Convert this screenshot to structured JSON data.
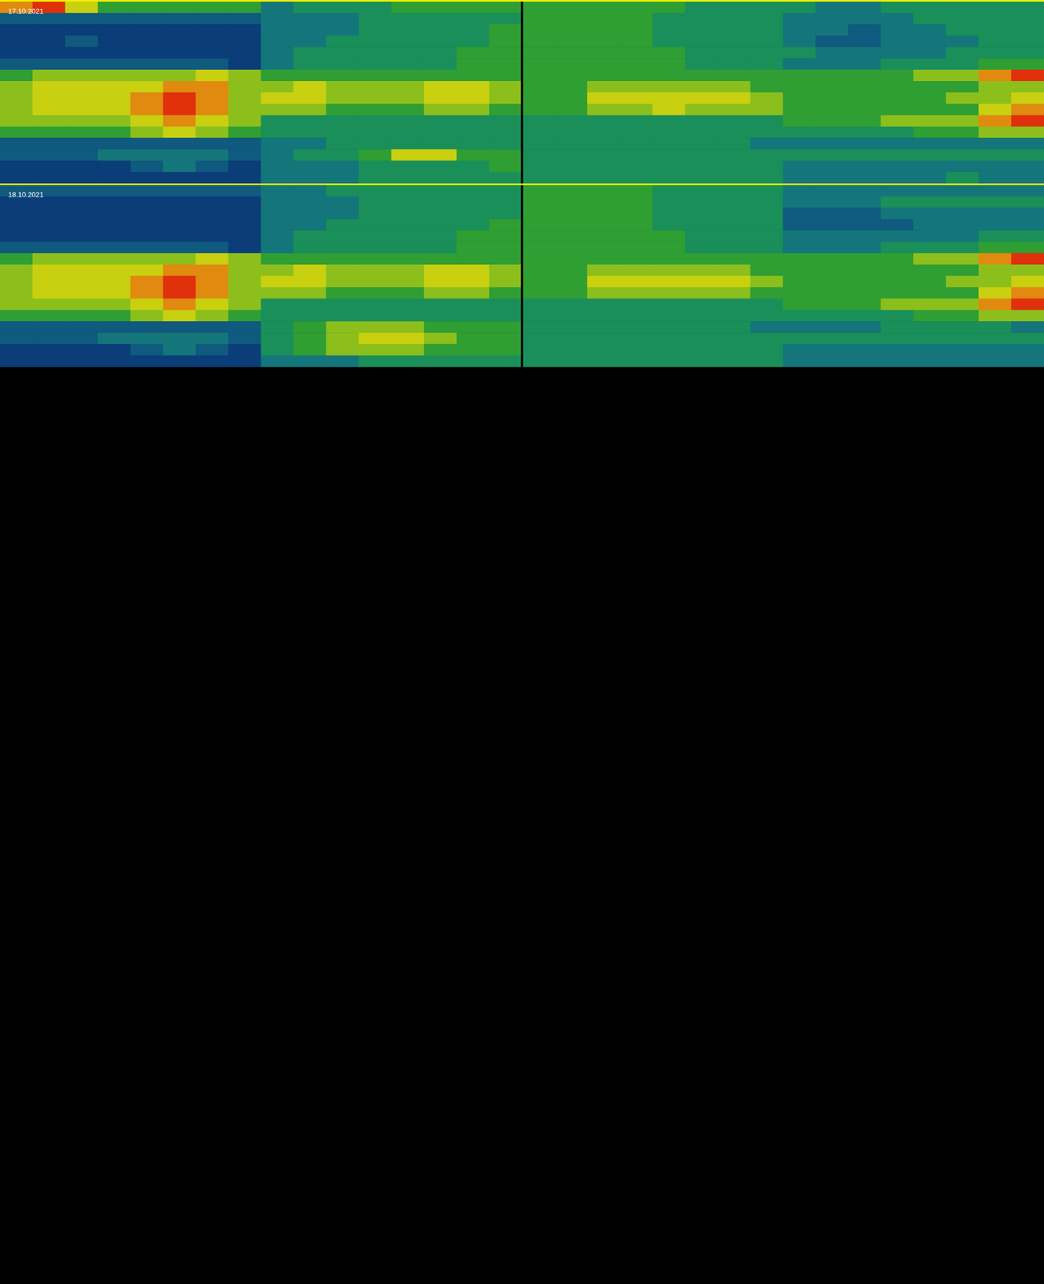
{
  "chart_data": [
    {
      "type": "heatmap",
      "title": "17.10.2021",
      "tick_labels": false,
      "color_range": [
        0,
        9
      ],
      "values": [
        [
          8,
          9,
          7,
          5,
          5,
          5,
          5,
          5,
          3,
          4,
          4,
          4,
          5,
          5,
          5,
          5,
          5,
          5,
          5,
          5,
          5,
          4,
          4,
          4,
          4,
          3,
          3,
          4,
          4,
          4,
          4,
          4
        ],
        [
          2,
          2,
          2,
          2,
          2,
          2,
          2,
          2,
          3,
          3,
          3,
          4,
          4,
          4,
          4,
          4,
          5,
          5,
          5,
          5,
          4,
          4,
          4,
          4,
          3,
          3,
          3,
          3,
          4,
          4,
          4,
          4
        ],
        [
          1,
          1,
          1,
          1,
          1,
          1,
          1,
          1,
          3,
          3,
          3,
          4,
          4,
          4,
          4,
          5,
          5,
          5,
          5,
          5,
          4,
          4,
          4,
          4,
          3,
          3,
          2,
          3,
          3,
          4,
          4,
          4
        ],
        [
          1,
          1,
          2,
          1,
          1,
          1,
          1,
          1,
          3,
          3,
          4,
          4,
          4,
          4,
          4,
          5,
          5,
          5,
          5,
          5,
          4,
          4,
          4,
          4,
          3,
          2,
          2,
          3,
          3,
          3,
          4,
          4
        ],
        [
          1,
          1,
          1,
          1,
          1,
          1,
          1,
          1,
          3,
          4,
          4,
          4,
          4,
          4,
          5,
          5,
          5,
          5,
          5,
          5,
          5,
          4,
          4,
          4,
          4,
          3,
          3,
          3,
          3,
          4,
          4,
          4
        ],
        [
          2,
          2,
          2,
          2,
          2,
          2,
          2,
          1,
          3,
          4,
          4,
          4,
          4,
          4,
          5,
          5,
          5,
          5,
          5,
          5,
          5,
          4,
          4,
          4,
          3,
          3,
          3,
          4,
          4,
          4,
          5,
          5
        ],
        [
          5,
          6,
          6,
          6,
          6,
          6,
          7,
          6,
          5,
          5,
          5,
          5,
          5,
          5,
          5,
          5,
          5,
          5,
          5,
          5,
          5,
          5,
          5,
          5,
          5,
          5,
          5,
          5,
          6,
          6,
          8,
          9
        ],
        [
          6,
          7,
          7,
          7,
          7,
          8,
          8,
          6,
          6,
          7,
          6,
          6,
          6,
          7,
          7,
          6,
          5,
          5,
          6,
          6,
          6,
          6,
          6,
          5,
          5,
          5,
          5,
          5,
          5,
          5,
          6,
          6
        ],
        [
          6,
          7,
          7,
          7,
          8,
          9,
          8,
          6,
          7,
          7,
          6,
          6,
          6,
          7,
          7,
          6,
          5,
          5,
          7,
          7,
          7,
          7,
          7,
          6,
          5,
          5,
          5,
          5,
          5,
          6,
          6,
          7
        ],
        [
          6,
          7,
          7,
          7,
          8,
          9,
          8,
          6,
          6,
          6,
          5,
          5,
          5,
          6,
          6,
          5,
          5,
          5,
          6,
          6,
          7,
          6,
          6,
          6,
          5,
          5,
          5,
          5,
          5,
          5,
          7,
          8
        ],
        [
          6,
          6,
          6,
          6,
          7,
          8,
          7,
          6,
          4,
          4,
          4,
          4,
          4,
          4,
          4,
          4,
          4,
          4,
          4,
          4,
          4,
          4,
          4,
          4,
          5,
          5,
          5,
          6,
          6,
          6,
          8,
          9
        ],
        [
          5,
          5,
          5,
          5,
          6,
          7,
          6,
          5,
          4,
          4,
          4,
          4,
          4,
          4,
          4,
          4,
          4,
          4,
          4,
          4,
          4,
          4,
          4,
          4,
          4,
          4,
          4,
          4,
          5,
          5,
          6,
          6
        ],
        [
          2,
          2,
          2,
          2,
          2,
          2,
          2,
          2,
          3,
          3,
          4,
          4,
          4,
          4,
          4,
          4,
          4,
          4,
          4,
          4,
          4,
          4,
          4,
          3,
          3,
          3,
          3,
          3,
          3,
          3,
          3,
          3
        ],
        [
          2,
          2,
          2,
          3,
          3,
          3,
          3,
          2,
          3,
          4,
          4,
          5,
          7,
          7,
          5,
          5,
          4,
          4,
          4,
          4,
          4,
          4,
          4,
          4,
          4,
          4,
          4,
          4,
          4,
          4,
          4,
          4
        ],
        [
          1,
          1,
          1,
          1,
          2,
          3,
          2,
          1,
          3,
          3,
          3,
          4,
          4,
          4,
          4,
          5,
          4,
          4,
          4,
          4,
          4,
          4,
          4,
          4,
          3,
          3,
          3,
          3,
          3,
          3,
          3,
          3
        ],
        [
          1,
          1,
          1,
          1,
          1,
          1,
          1,
          1,
          3,
          3,
          3,
          4,
          4,
          4,
          4,
          4,
          4,
          4,
          4,
          4,
          4,
          4,
          4,
          4,
          3,
          3,
          3,
          3,
          3,
          4,
          3,
          3
        ]
      ]
    },
    {
      "type": "heatmap",
      "title": "18.10.2021",
      "tick_labels": false,
      "color_range": [
        0,
        9
      ],
      "values": [
        [
          2,
          2,
          2,
          2,
          2,
          2,
          2,
          2,
          3,
          3,
          4,
          4,
          4,
          4,
          4,
          4,
          5,
          5,
          5,
          5,
          4,
          4,
          4,
          4,
          3,
          3,
          3,
          3,
          3,
          3,
          3,
          3
        ],
        [
          1,
          1,
          1,
          1,
          1,
          1,
          1,
          1,
          3,
          3,
          3,
          4,
          4,
          4,
          4,
          4,
          5,
          5,
          5,
          5,
          4,
          4,
          4,
          4,
          3,
          3,
          3,
          4,
          4,
          4,
          4,
          4
        ],
        [
          1,
          1,
          1,
          1,
          1,
          1,
          1,
          1,
          3,
          3,
          3,
          4,
          4,
          4,
          4,
          4,
          5,
          5,
          5,
          5,
          4,
          4,
          4,
          4,
          2,
          2,
          2,
          3,
          3,
          3,
          3,
          3
        ],
        [
          1,
          1,
          1,
          1,
          1,
          1,
          1,
          1,
          3,
          3,
          4,
          4,
          4,
          4,
          4,
          5,
          5,
          5,
          5,
          5,
          4,
          4,
          4,
          4,
          2,
          2,
          2,
          2,
          3,
          3,
          3,
          3
        ],
        [
          1,
          1,
          1,
          1,
          1,
          1,
          1,
          1,
          3,
          4,
          4,
          4,
          4,
          4,
          5,
          5,
          5,
          5,
          5,
          5,
          5,
          4,
          4,
          4,
          3,
          3,
          3,
          3,
          3,
          3,
          4,
          4
        ],
        [
          2,
          2,
          2,
          2,
          2,
          2,
          2,
          1,
          3,
          4,
          4,
          4,
          4,
          4,
          5,
          5,
          5,
          5,
          5,
          5,
          5,
          4,
          4,
          4,
          3,
          3,
          3,
          4,
          4,
          4,
          5,
          5
        ],
        [
          5,
          6,
          6,
          6,
          6,
          6,
          7,
          6,
          5,
          5,
          5,
          5,
          5,
          5,
          5,
          5,
          5,
          5,
          5,
          5,
          5,
          5,
          5,
          5,
          5,
          5,
          5,
          5,
          6,
          6,
          8,
          9
        ],
        [
          6,
          7,
          7,
          7,
          7,
          8,
          8,
          6,
          6,
          7,
          6,
          6,
          6,
          7,
          7,
          6,
          5,
          5,
          6,
          6,
          6,
          6,
          6,
          5,
          5,
          5,
          5,
          5,
          5,
          5,
          6,
          6
        ],
        [
          6,
          7,
          7,
          7,
          8,
          9,
          8,
          6,
          7,
          7,
          6,
          6,
          6,
          7,
          7,
          6,
          5,
          5,
          7,
          7,
          7,
          7,
          7,
          6,
          5,
          5,
          5,
          5,
          5,
          6,
          6,
          7
        ],
        [
          6,
          7,
          7,
          7,
          8,
          9,
          8,
          6,
          6,
          6,
          5,
          5,
          5,
          6,
          6,
          5,
          5,
          5,
          6,
          6,
          6,
          6,
          6,
          5,
          5,
          5,
          5,
          5,
          5,
          5,
          7,
          8
        ],
        [
          6,
          6,
          6,
          6,
          7,
          8,
          7,
          6,
          4,
          4,
          4,
          4,
          4,
          4,
          4,
          4,
          4,
          4,
          4,
          4,
          4,
          4,
          4,
          4,
          5,
          5,
          5,
          6,
          6,
          6,
          8,
          9
        ],
        [
          5,
          5,
          5,
          5,
          6,
          7,
          6,
          5,
          4,
          4,
          4,
          4,
          4,
          4,
          4,
          4,
          4,
          4,
          4,
          4,
          4,
          4,
          4,
          4,
          4,
          4,
          4,
          4,
          5,
          5,
          6,
          6
        ],
        [
          2,
          2,
          2,
          2,
          2,
          2,
          2,
          2,
          4,
          5,
          6,
          6,
          6,
          5,
          5,
          5,
          4,
          4,
          4,
          4,
          4,
          4,
          4,
          3,
          3,
          3,
          3,
          4,
          4,
          4,
          4,
          3
        ],
        [
          2,
          2,
          2,
          3,
          3,
          3,
          3,
          2,
          4,
          5,
          6,
          7,
          7,
          6,
          5,
          5,
          4,
          4,
          4,
          4,
          4,
          4,
          4,
          4,
          4,
          4,
          4,
          4,
          4,
          4,
          4,
          4
        ],
        [
          1,
          1,
          1,
          1,
          2,
          3,
          2,
          1,
          4,
          5,
          6,
          6,
          6,
          5,
          5,
          5,
          4,
          4,
          4,
          4,
          4,
          4,
          4,
          4,
          3,
          3,
          3,
          3,
          3,
          3,
          3,
          3
        ],
        [
          1,
          1,
          1,
          1,
          1,
          1,
          1,
          1,
          3,
          3,
          3,
          4,
          4,
          4,
          4,
          4,
          4,
          4,
          4,
          4,
          4,
          4,
          4,
          4,
          3,
          3,
          3,
          3,
          3,
          3,
          3,
          3
        ]
      ]
    }
  ]
}
